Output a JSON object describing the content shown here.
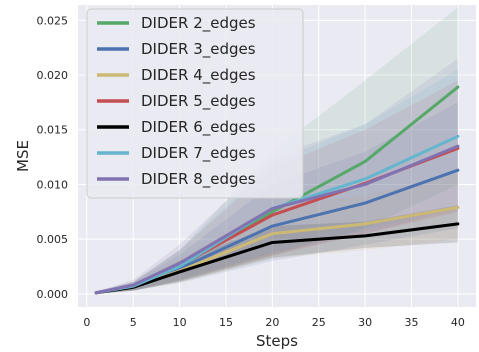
{
  "chart_data": {
    "type": "line",
    "xlabel": "Steps",
    "ylabel": "MSE",
    "x": [
      1,
      5,
      10,
      20,
      30,
      40
    ],
    "xlim": [
      -0.95,
      41.95
    ],
    "ylim": [
      -0.0012,
      0.0264
    ],
    "xticks": [
      0,
      5,
      10,
      15,
      20,
      25,
      30,
      35,
      40
    ],
    "yticks": [
      0.0,
      0.005,
      0.01,
      0.015,
      0.02,
      0.025
    ],
    "ytick_labels": [
      "0.000",
      "0.005",
      "0.010",
      "0.015",
      "0.020",
      "0.025"
    ],
    "grid": true,
    "legend_position": "top-left",
    "background": "#eaeaf2",
    "series": [
      {
        "name": "DIDER 2_edges",
        "color": "#55a868",
        "values": [
          0.0001,
          0.0007,
          0.0025,
          0.0075,
          0.0121,
          0.0189
        ],
        "lower": [
          0.0,
          0.0003,
          0.0012,
          0.0035,
          0.006,
          0.01
        ],
        "upper": [
          0.0002,
          0.0011,
          0.004,
          0.013,
          0.0195,
          0.0262
        ]
      },
      {
        "name": "DIDER 3_edges",
        "color": "#4c72b0",
        "values": [
          0.0001,
          0.0007,
          0.0023,
          0.0062,
          0.0083,
          0.0113
        ],
        "lower": [
          0.0,
          0.0003,
          0.001,
          0.003,
          0.0045,
          0.006
        ],
        "upper": [
          0.0002,
          0.0011,
          0.0036,
          0.01,
          0.013,
          0.0175
        ]
      },
      {
        "name": "DIDER 4_edges",
        "color": "#ccb974",
        "values": [
          0.0001,
          0.0006,
          0.0021,
          0.0055,
          0.0064,
          0.0079
        ],
        "lower": [
          0.0,
          0.0003,
          0.001,
          0.0032,
          0.004,
          0.005
        ],
        "upper": [
          0.0002,
          0.001,
          0.0032,
          0.008,
          0.009,
          0.011
        ]
      },
      {
        "name": "DIDER 5_edges",
        "color": "#c44e52",
        "values": [
          0.0001,
          0.0007,
          0.0026,
          0.0072,
          0.0101,
          0.0133
        ],
        "lower": [
          0.0,
          0.0003,
          0.0012,
          0.0035,
          0.0055,
          0.0075
        ],
        "upper": [
          0.0002,
          0.0011,
          0.004,
          0.0115,
          0.015,
          0.0195
        ]
      },
      {
        "name": "DIDER 6_edges",
        "color": "#000000",
        "values": [
          0.0001,
          0.0006,
          0.002,
          0.0047,
          0.0053,
          0.0064
        ],
        "lower": [
          0.0,
          0.0003,
          0.0011,
          0.0033,
          0.0042,
          0.0047
        ],
        "upper": [
          0.0002,
          0.0009,
          0.003,
          0.0062,
          0.0066,
          0.0081
        ]
      },
      {
        "name": "DIDER 7_edges",
        "color": "#64b5cd",
        "values": [
          0.0001,
          0.0007,
          0.0025,
          0.0078,
          0.0105,
          0.0144
        ],
        "lower": [
          0.0,
          0.0003,
          0.0012,
          0.0038,
          0.0058,
          0.008
        ],
        "upper": [
          0.0002,
          0.0011,
          0.004,
          0.012,
          0.0155,
          0.0205
        ]
      },
      {
        "name": "DIDER 8_edges",
        "color": "#8172b2",
        "values": [
          0.0001,
          0.0008,
          0.0028,
          0.0078,
          0.01,
          0.0135
        ],
        "lower": [
          0.0,
          0.0003,
          0.0013,
          0.0037,
          0.0055,
          0.0078
        ],
        "upper": [
          0.0002,
          0.0013,
          0.0045,
          0.0125,
          0.0155,
          0.0215
        ]
      }
    ]
  }
}
